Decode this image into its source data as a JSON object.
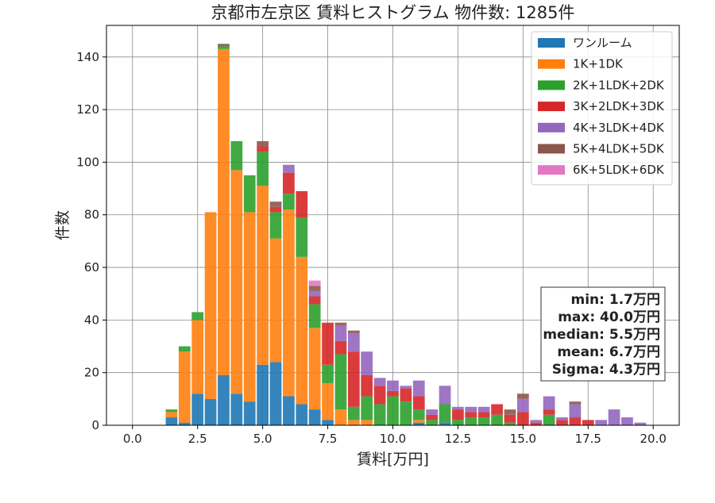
{
  "chart_data": {
    "type": "bar",
    "stacked": true,
    "title": "京都市左京区 賃料ヒストグラム 物件数: 1285件",
    "xlabel": "賃料[万円]",
    "ylabel": "件数",
    "xlim": [
      -1,
      21
    ],
    "ylim": [
      0,
      152
    ],
    "xticks": [
      0,
      2.5,
      5,
      7.5,
      10,
      12.5,
      15,
      17.5,
      20
    ],
    "xtick_labels": [
      "0.0",
      "2.5",
      "5.0",
      "7.5",
      "10.0",
      "12.5",
      "15.0",
      "17.5",
      "20.0"
    ],
    "yticks": [
      0,
      20,
      40,
      60,
      80,
      100,
      120,
      140
    ],
    "ytick_labels": [
      "0",
      "20",
      "40",
      "60",
      "80",
      "100",
      "120",
      "140"
    ],
    "grid": true,
    "legend_position": "top-right",
    "bin_width": 0.5,
    "x": [
      1.5,
      2.0,
      2.5,
      3.0,
      3.5,
      4.0,
      4.5,
      5.0,
      5.5,
      6.0,
      6.5,
      7.0,
      7.5,
      8.0,
      8.5,
      9.0,
      9.5,
      10.0,
      10.5,
      11.0,
      11.5,
      12.0,
      12.5,
      13.0,
      13.5,
      14.0,
      14.5,
      15.0,
      15.5,
      16.0,
      16.5,
      17.0,
      17.5,
      18.0,
      18.5,
      19.0,
      19.5
    ],
    "series": [
      {
        "name": "ワンルーム",
        "color": "#1f77b4",
        "values": [
          3,
          1,
          12,
          10,
          19,
          12,
          9,
          23,
          24,
          11,
          8,
          6,
          2,
          0,
          0,
          0,
          0,
          0,
          0,
          1,
          0,
          1,
          0,
          0,
          0,
          0,
          0,
          0,
          0,
          0,
          0,
          0,
          0,
          0,
          0,
          0,
          0
        ]
      },
      {
        "name": "1K+1DK",
        "color": "#ff7f0e",
        "values": [
          2,
          27,
          28,
          71,
          124,
          85,
          72,
          68,
          47,
          71,
          56,
          31,
          14,
          6,
          2,
          2,
          0,
          0,
          0,
          1,
          0,
          0,
          0,
          0,
          0,
          0,
          0,
          0,
          0,
          0,
          0,
          0,
          0,
          0,
          0,
          0,
          0
        ]
      },
      {
        "name": "2K+1LDK+2DK",
        "color": "#2ca02c",
        "values": [
          1,
          2,
          3,
          0,
          1,
          11,
          14,
          13,
          10,
          6,
          15,
          9,
          7,
          21,
          5,
          9,
          8,
          11,
          9,
          4,
          2,
          7,
          2,
          3,
          3,
          4,
          1,
          0,
          0,
          4,
          0,
          0,
          0,
          0,
          0,
          0,
          0
        ]
      },
      {
        "name": "3K+2LDK+3DK",
        "color": "#d62728",
        "values": [
          0,
          0,
          0,
          0,
          0,
          0,
          0,
          2,
          2,
          8,
          10,
          3,
          16,
          5,
          21,
          8,
          7,
          2,
          5,
          5,
          2,
          0,
          4,
          2,
          2,
          4,
          3,
          5,
          1,
          2,
          2,
          3,
          2,
          0,
          0,
          0,
          0
        ]
      },
      {
        "name": "4K+3LDK+4DK",
        "color": "#9467bd",
        "values": [
          0,
          0,
          0,
          0,
          0,
          0,
          0,
          0,
          0,
          3,
          0,
          2,
          0,
          6,
          7,
          9,
          3,
          4,
          1,
          6,
          2,
          7,
          1,
          2,
          2,
          0,
          0,
          5,
          1,
          5,
          1,
          5,
          0,
          2,
          6,
          3,
          1
        ]
      },
      {
        "name": "5K+4LDK+5DK",
        "color": "#8c564b",
        "values": [
          0,
          0,
          0,
          0,
          1,
          0,
          0,
          2,
          2,
          0,
          0,
          2,
          0,
          1,
          1,
          0,
          0,
          0,
          0,
          0,
          0,
          0,
          0,
          0,
          0,
          0,
          2,
          2,
          0,
          0,
          0,
          1,
          0,
          0,
          0,
          0,
          0
        ]
      },
      {
        "name": "6K+5LDK+6DK",
        "color": "#e377c2",
        "values": [
          0,
          0,
          0,
          0,
          0,
          0,
          0,
          0,
          0,
          0,
          0,
          2,
          0,
          0,
          0,
          0,
          0,
          0,
          0,
          0,
          0,
          0,
          0,
          0,
          0,
          0,
          0,
          0,
          0,
          0,
          0,
          0,
          0,
          0,
          0,
          0,
          0
        ]
      }
    ],
    "stats": [
      "min: 1.7万円",
      "max: 40.0万円",
      "median: 5.5万円",
      "mean: 6.7万円",
      "Sigma: 4.3万円"
    ]
  }
}
